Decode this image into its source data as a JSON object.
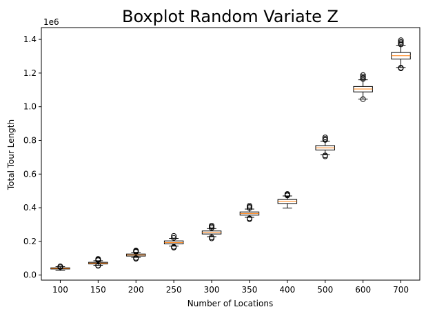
{
  "chart_data": {
    "type": "boxplot",
    "title": "Boxplot Random Variate Z",
    "xlabel": "Number of Locations",
    "ylabel": "Total Tour Length",
    "y_offset_label": "1e6",
    "ylim": [
      -0.03,
      1.47
    ],
    "yticks": [
      0.0,
      0.2,
      0.4,
      0.6,
      0.8,
      1.0,
      1.2,
      1.4
    ],
    "ytick_labels": [
      "0.0",
      "0.2",
      "0.4",
      "0.6",
      "0.8",
      "1.0",
      "1.2",
      "1.4"
    ],
    "categories": [
      "100",
      "150",
      "200",
      "250",
      "300",
      "350",
      "400",
      "500",
      "600",
      "700"
    ],
    "boxes": [
      {
        "whisker_low": 0.028,
        "q1": 0.036,
        "median": 0.039,
        "q3": 0.043,
        "whisker_high": 0.05,
        "fliers": [
          0.047,
          0.052
        ]
      },
      {
        "whisker_low": 0.058,
        "q1": 0.066,
        "median": 0.071,
        "q3": 0.076,
        "whisker_high": 0.085,
        "fliers": [
          0.055,
          0.057,
          0.088,
          0.092,
          0.096
        ]
      },
      {
        "whisker_low": 0.105,
        "q1": 0.113,
        "median": 0.119,
        "q3": 0.125,
        "whisker_high": 0.135,
        "fliers": [
          0.097,
          0.102,
          0.138,
          0.142,
          0.146
        ]
      },
      {
        "whisker_low": 0.172,
        "q1": 0.185,
        "median": 0.193,
        "q3": 0.203,
        "whisker_high": 0.218,
        "fliers": [
          0.163,
          0.168,
          0.221,
          0.233
        ]
      },
      {
        "whisker_low": 0.228,
        "q1": 0.244,
        "median": 0.253,
        "q3": 0.262,
        "whisker_high": 0.276,
        "fliers": [
          0.218,
          0.224,
          0.28,
          0.287,
          0.294
        ]
      },
      {
        "whisker_low": 0.343,
        "q1": 0.356,
        "median": 0.366,
        "q3": 0.375,
        "whisker_high": 0.392,
        "fliers": [
          0.332,
          0.337,
          0.398,
          0.405,
          0.412
        ]
      },
      {
        "whisker_low": 0.398,
        "q1": 0.425,
        "median": 0.437,
        "q3": 0.449,
        "whisker_high": 0.47,
        "fliers": [
          0.473,
          0.478,
          0.482
        ]
      },
      {
        "whisker_low": 0.715,
        "q1": 0.743,
        "median": 0.756,
        "q3": 0.769,
        "whisker_high": 0.795,
        "fliers": [
          0.705,
          0.711,
          0.803,
          0.81,
          0.818
        ]
      },
      {
        "whisker_low": 1.045,
        "q1": 1.088,
        "median": 1.105,
        "q3": 1.12,
        "whisker_high": 1.16,
        "fliers": [
          1.045,
          1.165,
          1.172,
          1.18,
          1.188
        ]
      },
      {
        "whisker_low": 1.233,
        "q1": 1.283,
        "median": 1.303,
        "q3": 1.322,
        "whisker_high": 1.365,
        "fliers": [
          1.228,
          1.232,
          1.37,
          1.378,
          1.385,
          1.395
        ]
      }
    ],
    "colors": {
      "median": "#ff7f0e",
      "box_edge": "#000000",
      "axis": "#000000",
      "background": "#ffffff"
    }
  }
}
